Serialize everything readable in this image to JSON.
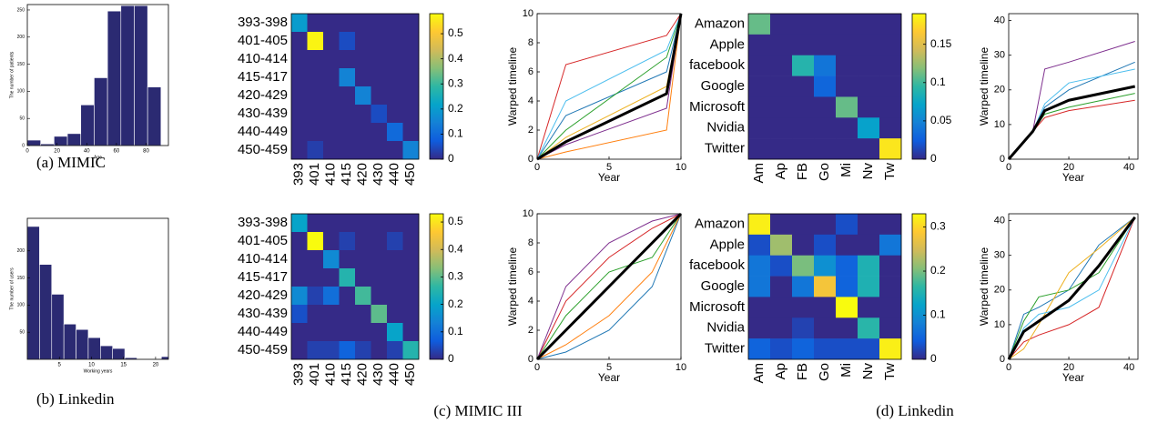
{
  "chart_data": [
    {
      "type": "histogram",
      "xlabel": "Age",
      "ylabel": "The number of patients",
      "bins": [
        0,
        9,
        18,
        27,
        36,
        45,
        54,
        63,
        72,
        81,
        90
      ],
      "counts": [
        10,
        3,
        17,
        22,
        75,
        125,
        248,
        258,
        258,
        108
      ],
      "color": "#2b2a72",
      "xlim": [
        0,
        95
      ],
      "ylim": [
        0,
        260
      ],
      "xticks": [
        0,
        20,
        40,
        60,
        80
      ],
      "yticks": [
        0,
        50,
        100,
        150,
        200,
        250
      ]
    },
    {
      "type": "heatmap",
      "rows": [
        "393-398",
        "401-405",
        "410-414",
        "415-417",
        "420-429",
        "430-439",
        "440-449",
        "450-459"
      ],
      "columns": [
        "393",
        "401",
        "410",
        "415",
        "420",
        "430",
        "440",
        "450"
      ],
      "values": [
        [
          0.2,
          0,
          0,
          0,
          0,
          0,
          0,
          0
        ],
        [
          0,
          0.57,
          0,
          0.05,
          0,
          0,
          0,
          0
        ],
        [
          0,
          0,
          0,
          0,
          0,
          0,
          0,
          0
        ],
        [
          0,
          0,
          0,
          0.15,
          0,
          0,
          0,
          0
        ],
        [
          0,
          0,
          0,
          0,
          0.15,
          0,
          0,
          0
        ],
        [
          0,
          0,
          0,
          0,
          0,
          0.05,
          0,
          0
        ],
        [
          0,
          0,
          0,
          0,
          0,
          0,
          0.1,
          0
        ],
        [
          0,
          0.03,
          0,
          0,
          0,
          0,
          0,
          0.15
        ]
      ],
      "clim": [
        0,
        0.58
      ],
      "cticks": [
        0,
        0.1,
        0.2,
        0.3,
        0.4,
        0.5
      ],
      "colorscale": [
        "#352a87",
        "#0f5cdd",
        "#1481d6",
        "#06a4ca",
        "#2eb7a4",
        "#87bf77",
        "#d1bb59",
        "#fec832",
        "#f9fb0e"
      ]
    },
    {
      "type": "line",
      "xlabel": "Year",
      "ylabel": "Warped timeline",
      "x": [
        0,
        2,
        9,
        10
      ],
      "xlim": [
        0,
        10
      ],
      "ylim": [
        0,
        10
      ],
      "xticks": [
        0,
        5,
        10
      ],
      "yticks": [
        0,
        2,
        4,
        6,
        8,
        10
      ],
      "series": [
        {
          "color": "#d62728",
          "values": [
            0,
            6.5,
            8.5,
            10
          ]
        },
        {
          "color": "#1f77b4",
          "values": [
            0,
            3,
            6,
            10
          ]
        },
        {
          "color": "#2ca02c",
          "values": [
            0,
            2,
            7,
            10
          ]
        },
        {
          "color": "#ff7f0e",
          "values": [
            0,
            0.5,
            2,
            10
          ]
        },
        {
          "color": "#7e2f8e",
          "values": [
            0,
            1,
            3.5,
            10
          ]
        },
        {
          "color": "#4dbeee",
          "values": [
            0,
            4,
            7.5,
            10
          ]
        },
        {
          "color": "#edb120",
          "values": [
            0,
            1.5,
            5,
            10
          ]
        },
        {
          "color": "#000000",
          "values": [
            0,
            1.2,
            4.5,
            10
          ]
        }
      ]
    },
    {
      "type": "heatmap",
      "rows": [
        "Amazon",
        "Apple",
        "facebook",
        "Google",
        "Microsoft",
        "Nvidia",
        "Twitter"
      ],
      "columns": [
        "Am",
        "Ap",
        "FB",
        "Go",
        "Mi",
        "Nv",
        "Tw"
      ],
      "values": [
        [
          0.11,
          0,
          0,
          0,
          0,
          0,
          0
        ],
        [
          0,
          0,
          0,
          0,
          0,
          0,
          0
        ],
        [
          0,
          0,
          0.09,
          0.04,
          0,
          0,
          0
        ],
        [
          0,
          0,
          0,
          0.03,
          0,
          0,
          0
        ],
        [
          0,
          0,
          0,
          0,
          0.11,
          0,
          0
        ],
        [
          0,
          0,
          0,
          0,
          0,
          0.07,
          0
        ],
        [
          0,
          0,
          0,
          0,
          0,
          0,
          0.18
        ]
      ],
      "clim": [
        0,
        0.19
      ],
      "cticks": [
        0,
        0.05,
        0.1,
        0.15
      ],
      "colorscale": [
        "#352a87",
        "#0f5cdd",
        "#1481d6",
        "#06a4ca",
        "#2eb7a4",
        "#87bf77",
        "#d1bb59",
        "#fec832",
        "#f9fb0e"
      ]
    },
    {
      "type": "line",
      "xlabel": "Year",
      "ylabel": "Warped timeline",
      "x": [
        0,
        8,
        12,
        20,
        42
      ],
      "xlim": [
        0,
        43
      ],
      "ylim": [
        0,
        42
      ],
      "xticks": [
        0,
        20,
        40
      ],
      "yticks": [
        0,
        10,
        20,
        30,
        40
      ],
      "series": [
        {
          "color": "#7e2f8e",
          "values": [
            0,
            8,
            26,
            28,
            34
          ]
        },
        {
          "color": "#1f77b4",
          "values": [
            0,
            8,
            15,
            20,
            28
          ]
        },
        {
          "color": "#d62728",
          "values": [
            0,
            8,
            12,
            14,
            17
          ]
        },
        {
          "color": "#2ca02c",
          "values": [
            0,
            8,
            13,
            15,
            19
          ]
        },
        {
          "color": "#4dbeee",
          "values": [
            0,
            8,
            16,
            22,
            26
          ]
        },
        {
          "color": "#000000",
          "values": [
            0,
            8,
            14,
            17,
            21
          ]
        }
      ]
    },
    {
      "type": "histogram",
      "xlabel": "Working years",
      "ylabel": "The number of users",
      "bins": [
        0,
        1.9,
        3.8,
        5.7,
        7.6,
        9.5,
        11.4,
        13.3,
        15.2,
        17.1,
        19,
        20.9,
        22
      ],
      "counts": [
        245,
        175,
        120,
        65,
        55,
        40,
        25,
        20,
        3,
        0,
        0,
        5
      ],
      "color": "#2b2a72",
      "xlim": [
        0,
        22
      ],
      "ylim": [
        0,
        260
      ],
      "xticks": [
        5,
        10,
        15,
        20
      ],
      "yticks": [
        50,
        100,
        150,
        200
      ]
    },
    {
      "type": "heatmap",
      "rows": [
        "393-398",
        "401-405",
        "410-414",
        "415-417",
        "420-429",
        "430-439",
        "440-449",
        "450-459"
      ],
      "columns": [
        "393",
        "401",
        "410",
        "415",
        "420",
        "430",
        "440",
        "450"
      ],
      "values": [
        [
          0.2,
          0,
          0,
          0,
          0,
          0,
          0,
          0
        ],
        [
          0,
          0.53,
          0,
          0.03,
          0,
          0,
          0.03,
          0
        ],
        [
          0,
          0,
          0.15,
          0,
          0,
          0,
          0,
          0
        ],
        [
          0,
          0,
          0,
          0.25,
          0,
          0,
          0,
          0
        ],
        [
          0.15,
          0.03,
          0.1,
          0,
          0.28,
          0,
          0,
          0
        ],
        [
          0.05,
          0,
          0,
          0,
          0,
          0.3,
          0,
          0
        ],
        [
          0,
          0,
          0,
          0,
          0,
          0,
          0.2,
          0
        ],
        [
          0,
          0.03,
          0.03,
          0.08,
          0.03,
          0,
          0.03,
          0.25
        ]
      ],
      "clim": [
        0,
        0.53
      ],
      "cticks": [
        0,
        0.1,
        0.2,
        0.3,
        0.4,
        0.5
      ],
      "colorscale": [
        "#352a87",
        "#0f5cdd",
        "#1481d6",
        "#06a4ca",
        "#2eb7a4",
        "#87bf77",
        "#d1bb59",
        "#fec832",
        "#f9fb0e"
      ]
    },
    {
      "type": "line",
      "xlabel": "Year",
      "ylabel": "Warped timeline",
      "x": [
        0,
        2,
        5,
        8,
        10
      ],
      "xlim": [
        0,
        10
      ],
      "ylim": [
        0,
        10
      ],
      "xticks": [
        0,
        5,
        10
      ],
      "yticks": [
        0,
        2,
        4,
        6,
        8,
        10
      ],
      "series": [
        {
          "color": "#d62728",
          "values": [
            0,
            4,
            7,
            9,
            10
          ]
        },
        {
          "color": "#1f77b4",
          "values": [
            0,
            0.5,
            2,
            5,
            10
          ]
        },
        {
          "color": "#2ca02c",
          "values": [
            0,
            3,
            6,
            7,
            10
          ]
        },
        {
          "color": "#ff7f0e",
          "values": [
            0,
            1,
            3,
            6,
            10
          ]
        },
        {
          "color": "#7e2f8e",
          "values": [
            0,
            5,
            8,
            9.5,
            10
          ]
        },
        {
          "color": "#000000",
          "values": [
            0,
            2,
            5,
            8,
            10
          ]
        }
      ]
    },
    {
      "type": "heatmap",
      "rows": [
        "Amazon",
        "Apple",
        "facebook",
        "Google",
        "Microsoft",
        "Nvidia",
        "Twitter"
      ],
      "columns": [
        "Am",
        "Ap",
        "FB",
        "Go",
        "Mi",
        "Nv",
        "Tw"
      ],
      "values": [
        [
          0.32,
          0,
          0,
          0,
          0.03,
          0,
          0
        ],
        [
          0.03,
          0.22,
          0,
          0.03,
          0,
          0,
          0.07
        ],
        [
          0.07,
          0.03,
          0.2,
          0.1,
          0.05,
          0.15,
          0
        ],
        [
          0.07,
          0,
          0.07,
          0.28,
          0.05,
          0.15,
          0
        ],
        [
          0,
          0,
          0,
          0,
          0.33,
          0,
          0
        ],
        [
          0,
          0,
          0.02,
          0,
          0,
          0.16,
          0
        ],
        [
          0.05,
          0.03,
          0.05,
          0.03,
          0.03,
          0.03,
          0.32
        ]
      ],
      "clim": [
        0,
        0.33
      ],
      "cticks": [
        0,
        0.1,
        0.2,
        0.3
      ],
      "colorscale": [
        "#352a87",
        "#0f5cdd",
        "#1481d6",
        "#06a4ca",
        "#2eb7a4",
        "#87bf77",
        "#d1bb59",
        "#fec832",
        "#f9fb0e"
      ]
    },
    {
      "type": "line",
      "xlabel": "Year",
      "ylabel": "Warped timeline",
      "x": [
        0,
        5,
        10,
        20,
        30,
        42
      ],
      "xlim": [
        0,
        43
      ],
      "ylim": [
        0,
        42
      ],
      "xticks": [
        0,
        20,
        40
      ],
      "yticks": [
        0,
        10,
        20,
        30,
        40
      ],
      "series": [
        {
          "color": "#1f77b4",
          "values": [
            0,
            13,
            15,
            20,
            33,
            41
          ]
        },
        {
          "color": "#d62728",
          "values": [
            0,
            5,
            7,
            10,
            15,
            41
          ]
        },
        {
          "color": "#2ca02c",
          "values": [
            0,
            11,
            18,
            20,
            25,
            41
          ]
        },
        {
          "color": "#edb120",
          "values": [
            0,
            3,
            10,
            25,
            32,
            41
          ]
        },
        {
          "color": "#4dbeee",
          "values": [
            0,
            9,
            13,
            15,
            20,
            41
          ]
        },
        {
          "color": "#000000",
          "values": [
            0,
            8,
            11,
            17,
            27,
            41
          ]
        }
      ]
    }
  ],
  "figure": {
    "captions": [
      "(a) MIMIC",
      "(b) Linkedin",
      "(c) MIMIC III",
      "(d) Linkedin"
    ]
  }
}
